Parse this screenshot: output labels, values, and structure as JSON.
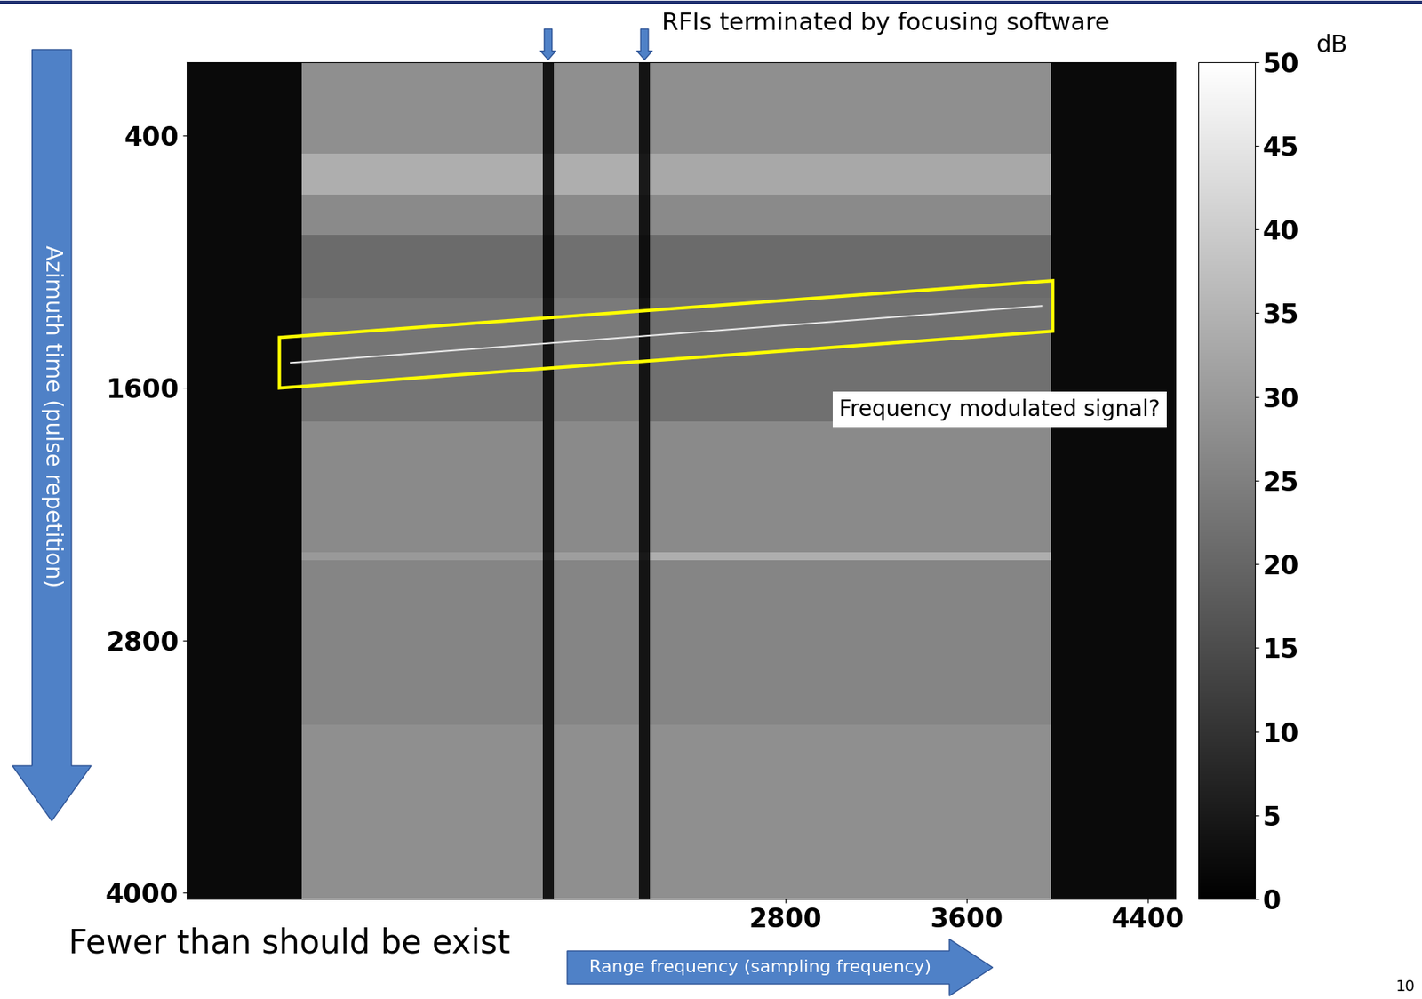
{
  "chart_data": {
    "type": "heatmap",
    "x_label": "Range frequency (sampling frequency)",
    "y_label": "Azimuth time (pulse repetition)",
    "xlim": [
      160,
      4520
    ],
    "ylim": [
      4030,
      50
    ],
    "xticks": [
      2800,
      3600,
      4400
    ],
    "yticks": [
      400,
      1600,
      2800,
      4000
    ],
    "x_edges": [
      160,
      668,
      1730,
      1780,
      2155,
      2205,
      3972,
      4520
    ],
    "y_edges": [
      50,
      485,
      680,
      870,
      1170,
      1760,
      2380,
      2420,
      3200,
      4030
    ],
    "cells": [
      [
        2,
        28,
        4,
        28,
        4,
        28,
        2
      ],
      [
        2,
        34,
        5,
        34,
        5,
        33,
        2
      ],
      [
        2,
        27,
        4,
        27,
        4,
        27,
        2
      ],
      [
        2,
        21,
        3,
        22,
        3,
        21,
        2
      ],
      [
        2,
        23,
        4,
        24,
        4,
        22,
        2
      ],
      [
        2,
        27,
        4,
        27,
        4,
        27,
        2
      ],
      [
        2,
        30,
        5,
        31,
        5,
        34,
        2
      ],
      [
        2,
        26,
        4,
        26,
        4,
        26,
        2
      ],
      [
        2,
        28,
        4,
        28,
        4,
        28,
        2
      ]
    ],
    "colorbar": {
      "label": "dB",
      "range": [
        0,
        50
      ],
      "ticks": [
        0,
        5,
        10,
        15,
        20,
        25,
        30,
        35,
        40,
        45,
        50
      ]
    },
    "annotations": {
      "rfi": {
        "text": "RFIs terminated by focusing software",
        "x": [
          1755,
          2180
        ]
      },
      "fm_signal": {
        "text": "Frequency modulated signal?",
        "x": [
          620,
          3930
        ],
        "y": [
          1480,
          1210
        ]
      },
      "note": "Fewer than should be exist",
      "page": "10"
    }
  }
}
